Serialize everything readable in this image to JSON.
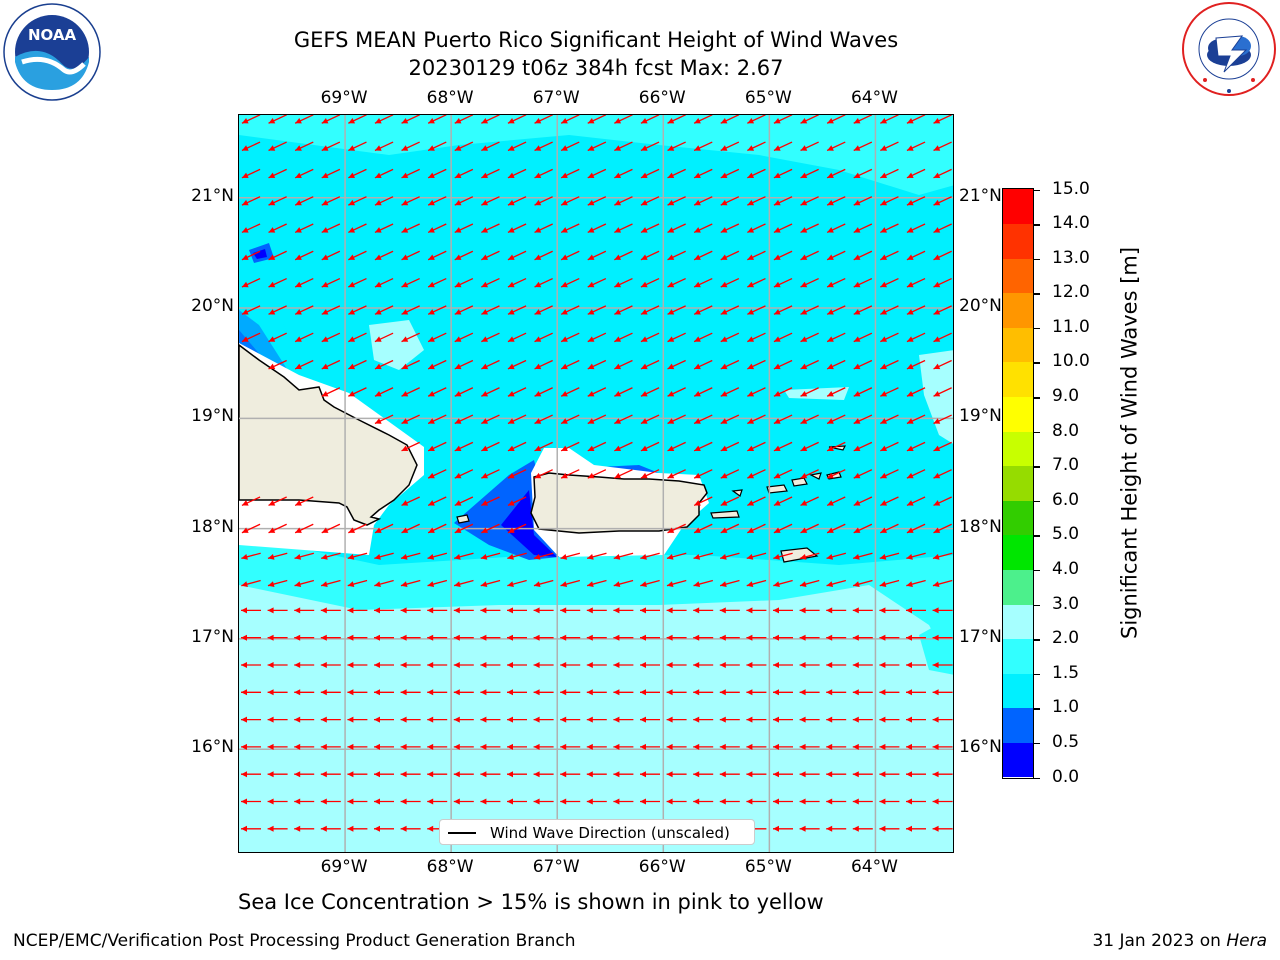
{
  "title": {
    "line1": "GEFS MEAN Puerto Rico Significant Height of Wind Waves",
    "line2": "20230129 t06z 384h fcst   Max: 2.67"
  },
  "logos": {
    "left": {
      "name": "noaa-logo",
      "text": "NOAA",
      "ring_text": "NATIONAL OCEANIC AND ATMOSPHERIC ADMINISTRATION · U.S. DEPARTMENT OF COMMERCE"
    },
    "right": {
      "name": "nws-logo",
      "ring_text": "NATIONAL WEATHER SERVICE"
    }
  },
  "map": {
    "lon_labels": [
      "69°W",
      "68°W",
      "67°W",
      "66°W",
      "65°W",
      "64°W"
    ],
    "lon_values": [
      -69,
      -68,
      -67,
      -66,
      -65,
      -64
    ],
    "lat_labels": [
      "21°N",
      "20°N",
      "19°N",
      "18°N",
      "17°N",
      "16°N"
    ],
    "lat_values": [
      21,
      20,
      19,
      18,
      17,
      16
    ],
    "lon_range": [
      -70.0,
      -63.25
    ],
    "lat_range": [
      15.05,
      21.75
    ],
    "wind_wave_direction": "east to west (arrows pointing west / southwest)",
    "colors": {
      "land": "#efedde",
      "coast": "#000000",
      "arrow": "#ff0000",
      "grid": "#b0b0b0",
      "no_data": "#ffffff"
    },
    "legend": "Wind Wave Direction (unscaled)"
  },
  "colorbar": {
    "label": "Significant Height of Wind Waves [m]",
    "ticks": [
      "0.0",
      "0.5",
      "1.0",
      "1.5",
      "2.0",
      "3.0",
      "4.0",
      "5.0",
      "6.0",
      "7.0",
      "8.0",
      "9.0",
      "10.0",
      "11.0",
      "12.0",
      "13.0",
      "14.0",
      "15.0"
    ],
    "colors": [
      "#0000ff",
      "#0064ff",
      "#00f0ff",
      "#32ffff",
      "#a6ffff",
      "#4cf08c",
      "#00e600",
      "#32cd00",
      "#96dc00",
      "#c8ff00",
      "#ffff00",
      "#ffe100",
      "#ffbe00",
      "#ff9600",
      "#ff6400",
      "#ff3200",
      "#ff0000"
    ]
  },
  "subtitle": "Sea Ice Concentration > 15% is shown in pink to yellow",
  "footer": {
    "left": "NCEP/EMC/Verification Post Processing Product Generation Branch",
    "right_prefix": "31 Jan 2023 on",
    "right_host": "Hera"
  }
}
